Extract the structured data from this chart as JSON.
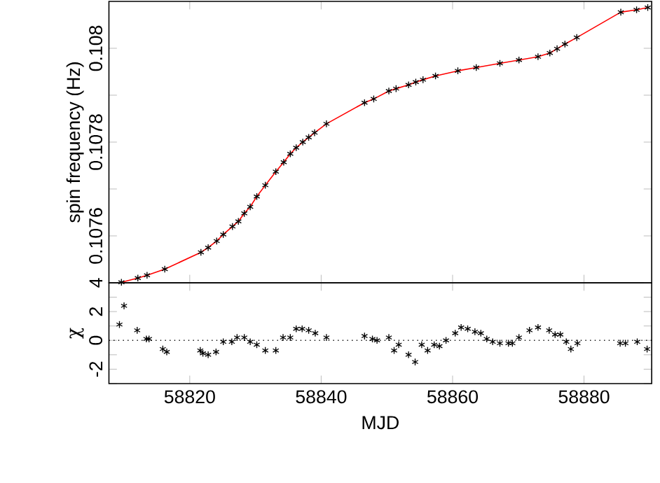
{
  "chart_data": [
    {
      "type": "line",
      "ylabel": "spin frequency (Hz)",
      "marker": "cross",
      "line_style": "solid",
      "tick_labels": "y",
      "xlim": [
        58807.7,
        58890.3
      ],
      "xticks": [
        58820,
        58840,
        58860,
        58880
      ],
      "ylim": [
        0.1075,
        0.1081
      ],
      "yticks": [
        {
          "value": 0.1075,
          "label": null
        },
        0.1076,
        {
          "value": 0.1077,
          "label": null
        },
        0.1078,
        {
          "value": 0.1079,
          "label": null
        },
        0.108
      ],
      "series": [
        {
          "color": "#ff0000",
          "x": [
            58809.6,
            58812.1,
            58813.5,
            58816.2,
            58821.7,
            58822.8,
            58824.1,
            58825.1,
            58826.5,
            58827.4,
            58828.3,
            58829.2,
            58830.2,
            58831.5,
            58833.1,
            58834.3,
            58835.3,
            58836.2,
            58837.2,
            58838.1,
            58839.0,
            58840.8,
            58846.6,
            58848.0,
            58850.3,
            58851.4,
            58853.3,
            58854.4,
            58855.5,
            58857.4,
            58860.8,
            58863.6,
            58867.2,
            58870.1,
            58873.0,
            58874.8,
            58875.9,
            58877.1,
            58878.9,
            58885.6,
            58888.0,
            58889.7
          ],
          "values": [
            0.107501,
            0.10751,
            0.107516,
            0.107529,
            0.107565,
            0.107575,
            0.107589,
            0.107603,
            0.10762,
            0.107631,
            0.107648,
            0.107662,
            0.107684,
            0.107708,
            0.107737,
            0.107757,
            0.107775,
            0.107788,
            0.1078,
            0.10781,
            0.10782,
            0.107839,
            0.107884,
            0.107892,
            0.107909,
            0.107914,
            0.107922,
            0.107928,
            0.107933,
            0.107941,
            0.107952,
            0.107959,
            0.107968,
            0.107975,
            0.107982,
            0.10799,
            0.107999,
            0.108009,
            0.108023,
            0.108077,
            0.108082,
            0.108087
          ]
        }
      ]
    },
    {
      "type": "scatter",
      "xlabel": "MJD",
      "ylabel": "χ",
      "marker": "cross",
      "xlim": [
        58807.7,
        58890.3
      ],
      "xticks": [
        58820,
        58840,
        58860,
        58880
      ],
      "ylim": [
        -3,
        4
      ],
      "yticks": [
        {
          "value": -3,
          "label": null
        },
        -2,
        {
          "value": -1,
          "label": null
        },
        0,
        {
          "value": 1,
          "label": null
        },
        2,
        {
          "value": 3,
          "label": null
        },
        4
      ],
      "ref_lines": [
        {
          "axis": "y",
          "value": 0,
          "color": "#000000",
          "line_style": "dotted"
        }
      ],
      "series": [
        {
          "color": "#000000",
          "x": [
            58809.3,
            58810.0,
            58812.0,
            58813.4,
            58813.8,
            58815.9,
            58816.5,
            58821.6,
            58822.0,
            58822.8,
            58824.0,
            58825.1,
            58826.4,
            58827.2,
            58828.3,
            58829.2,
            58830.2,
            58831.5,
            58833.1,
            58834.2,
            58835.3,
            58836.2,
            58837.1,
            58838.1,
            58839.1,
            58840.8,
            58846.6,
            58847.8,
            58848.5,
            58850.3,
            58851.1,
            58851.8,
            58853.3,
            58854.3,
            58855.3,
            58856.2,
            58857.2,
            58858.0,
            58859.0,
            58860.4,
            58861.3,
            58862.3,
            58863.4,
            58864.3,
            58865.2,
            58866.1,
            58867.2,
            58868.5,
            58869.1,
            58870.1,
            58871.7,
            58873.0,
            58874.7,
            58875.6,
            58876.4,
            58877.3,
            58878.0,
            58879.0,
            58885.5,
            58886.3,
            58888.1,
            58889.6
          ],
          "values": [
            1.1,
            2.4,
            0.7,
            0.1,
            0.1,
            -0.6,
            -0.8,
            -0.7,
            -0.9,
            -1.0,
            -0.8,
            -0.1,
            -0.1,
            0.2,
            0.2,
            -0.1,
            -0.3,
            -0.7,
            -0.7,
            0.2,
            0.2,
            0.8,
            0.8,
            0.7,
            0.5,
            0.2,
            0.3,
            0.1,
            0.0,
            0.2,
            -0.7,
            -0.3,
            -1.0,
            -1.5,
            -0.3,
            -0.7,
            -0.3,
            -0.4,
            0.0,
            0.5,
            0.9,
            0.8,
            0.6,
            0.5,
            0.1,
            -0.1,
            -0.2,
            -0.2,
            -0.2,
            0.2,
            0.7,
            0.9,
            0.7,
            0.4,
            0.4,
            -0.1,
            -0.6,
            -0.2,
            -0.2,
            -0.2,
            -0.1,
            -0.6
          ]
        }
      ]
    }
  ]
}
